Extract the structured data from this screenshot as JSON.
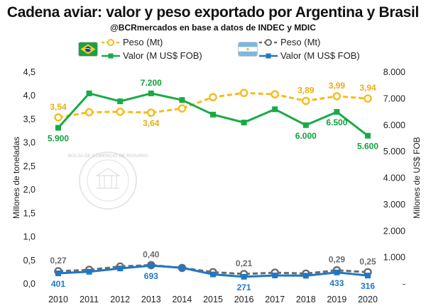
{
  "header": {
    "title": "Cadena aviar: valor y peso exportado por Argentina y Brasil",
    "subtitle": "@BCRmercados en base a datos de INDEC y MDIC"
  },
  "legend": {
    "brasil_peso": "Peso (Mt)",
    "brasil_valor": "Valor (M US$ FOB)",
    "argentina_peso": "Peso (Mt)",
    "argentina_valor": "Valor (M US$ FOB)"
  },
  "watermark": "BOLSA DE COMERCIO DE ROSARIO",
  "colors": {
    "brasil_peso": "#F5BC1C",
    "brasil_valor": "#19AA46",
    "argentina_peso": "#6B6B6B",
    "argentina_valor": "#1F77C8",
    "label_brasil_peso": "#E8AE10",
    "label_brasil_valor": "#12A03C",
    "label_argentina_peso": "#6B6B6B",
    "label_argentina_valor": "#1F77C8"
  },
  "chart_data": {
    "type": "line",
    "title": "Cadena aviar: valor y peso exportado por Argentina y Brasil",
    "ylabel_left": "Millones de toneladas",
    "ylabel_right": "Millones de US$ FOB",
    "ylim_left": [
      0,
      4.5
    ],
    "ylim_right": [
      0,
      8000
    ],
    "x": [
      "2010",
      "2011",
      "2012",
      "2013",
      "2014",
      "2015",
      "2016",
      "2017",
      "2018",
      "2019",
      "2020"
    ],
    "left_ticks": [
      "0,0",
      "0,5",
      "1,0",
      "1,5",
      "2,0",
      "2,5",
      "3,0",
      "3,5",
      "4,0",
      "4,5"
    ],
    "right_ticks": [
      "-",
      "1.000",
      "2.000",
      "3.000",
      "4.000",
      "5.000",
      "6.000",
      "7.000",
      "8.000"
    ],
    "grid": false,
    "series": [
      {
        "name": "Peso (Mt)",
        "country": "Brasil",
        "axis": "left",
        "style": "dashed-circle",
        "color_key": "brasil_peso",
        "values": [
          3.54,
          3.65,
          3.66,
          3.64,
          3.73,
          3.97,
          4.06,
          4.03,
          3.89,
          3.99,
          3.94
        ]
      },
      {
        "name": "Valor (M US$ FOB)",
        "country": "Brasil",
        "axis": "right",
        "style": "solid-square",
        "color_key": "brasil_valor",
        "values": [
          5900,
          7200,
          6900,
          7200,
          6950,
          6400,
          6100,
          6600,
          6000,
          6500,
          5600
        ]
      },
      {
        "name": "Peso (Mt)",
        "country": "Argentina",
        "axis": "left",
        "style": "dashed-circle",
        "color_key": "argentina_peso",
        "values": [
          0.27,
          0.3,
          0.37,
          0.4,
          0.34,
          0.25,
          0.21,
          0.24,
          0.22,
          0.29,
          0.25
        ]
      },
      {
        "name": "Valor (M US$ FOB)",
        "country": "Argentina",
        "axis": "right",
        "style": "solid-square",
        "color_key": "argentina_valor",
        "values": [
          401,
          460,
          585,
          693,
          610,
          360,
          271,
          320,
          310,
          433,
          316
        ]
      }
    ],
    "data_labels": [
      {
        "series": 0,
        "index": 0,
        "text": "3,54",
        "pos": "above"
      },
      {
        "series": 0,
        "index": 3,
        "text": "3,64",
        "pos": "below"
      },
      {
        "series": 0,
        "index": 8,
        "text": "3,89",
        "pos": "above"
      },
      {
        "series": 0,
        "index": 9,
        "text": "3,99",
        "pos": "above"
      },
      {
        "series": 0,
        "index": 10,
        "text": "3,94",
        "pos": "above"
      },
      {
        "series": 1,
        "index": 0,
        "text": "5.900",
        "pos": "below"
      },
      {
        "series": 1,
        "index": 3,
        "text": "7.200",
        "pos": "above"
      },
      {
        "series": 1,
        "index": 8,
        "text": "6.000",
        "pos": "below"
      },
      {
        "series": 1,
        "index": 9,
        "text": "6.500",
        "pos": "below"
      },
      {
        "series": 1,
        "index": 10,
        "text": "5.600",
        "pos": "below"
      },
      {
        "series": 2,
        "index": 0,
        "text": "0,27",
        "pos": "above"
      },
      {
        "series": 2,
        "index": 3,
        "text": "0,40",
        "pos": "above"
      },
      {
        "series": 2,
        "index": 6,
        "text": "0,21",
        "pos": "above"
      },
      {
        "series": 2,
        "index": 9,
        "text": "0,29",
        "pos": "above"
      },
      {
        "series": 2,
        "index": 10,
        "text": "0,25",
        "pos": "above"
      },
      {
        "series": 3,
        "index": 0,
        "text": "401",
        "pos": "below"
      },
      {
        "series": 3,
        "index": 3,
        "text": "693",
        "pos": "below"
      },
      {
        "series": 3,
        "index": 6,
        "text": "271",
        "pos": "below"
      },
      {
        "series": 3,
        "index": 9,
        "text": "433",
        "pos": "below"
      },
      {
        "series": 3,
        "index": 10,
        "text": "316",
        "pos": "below"
      }
    ]
  }
}
